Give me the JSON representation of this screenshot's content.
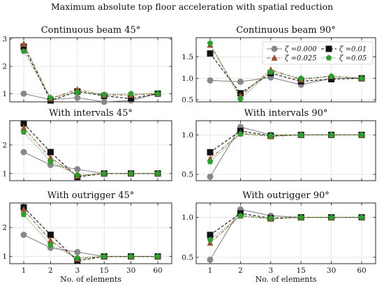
{
  "figure_title": "Maximum absolute top floor acceleration with spatial reduction",
  "colors": {
    "zeta_000": "#888888",
    "zeta_001": "#111111",
    "zeta_0025": "#a0522d",
    "zeta_005": "#2ca02c",
    "grid": "#dddddd"
  },
  "legend": {
    "placement": "upper-right of Continuous beam 90° panel",
    "entries": [
      {
        "label": "ζ =0.000",
        "marker": "circle",
        "line": "solid",
        "color_key": "zeta_000"
      },
      {
        "label": "ζ =0.01",
        "marker": "square",
        "line": "dashed",
        "color_key": "zeta_001"
      },
      {
        "label": "ζ =0.025",
        "marker": "triangle",
        "line": "dashdot",
        "color_key": "zeta_0025"
      },
      {
        "label": "ζ =0.05",
        "marker": "pentagon",
        "line": "dotted",
        "color_key": "zeta_005"
      }
    ]
  },
  "chart_data": [
    {
      "type": "line",
      "title": "Continuous beam 45°",
      "xlabel": "",
      "categories": [
        "1",
        "2",
        "3",
        "15",
        "30",
        "60"
      ],
      "x_tick_labels_visible": false,
      "ylim": [
        0.7,
        3.05
      ],
      "yticks": [
        1,
        2,
        3
      ],
      "ytick_labels": [
        "1",
        "2",
        "3"
      ],
      "grid": true,
      "series": [
        {
          "name": "ζ =0.000",
          "values": [
            1.0,
            0.78,
            0.85,
            0.7,
            0.75,
            1.0
          ]
        },
        {
          "name": "ζ =0.01",
          "values": [
            2.72,
            0.75,
            1.08,
            0.92,
            0.82,
            1.0
          ]
        },
        {
          "name": "ζ =0.025",
          "values": [
            2.82,
            0.82,
            1.15,
            0.95,
            0.95,
            1.0
          ]
        },
        {
          "name": "ζ =0.05",
          "values": [
            2.55,
            0.85,
            1.05,
            0.97,
            1.0,
            1.0
          ]
        }
      ]
    },
    {
      "type": "line",
      "title": "Continuous beam 90°",
      "xlabel": "",
      "categories": [
        "1",
        "2",
        "3",
        "15",
        "30",
        "60"
      ],
      "x_tick_labels_visible": false,
      "ylim": [
        0.45,
        1.95
      ],
      "yticks": [
        0.5,
        1.0,
        1.5
      ],
      "ytick_labels": [
        "0.5",
        "1.0",
        "1.5"
      ],
      "grid": true,
      "series": [
        {
          "name": "ζ =0.000",
          "values": [
            0.95,
            0.92,
            1.02,
            0.85,
            1.0,
            1.0
          ]
        },
        {
          "name": "ζ =0.01",
          "values": [
            1.58,
            0.65,
            1.12,
            0.93,
            0.98,
            1.0
          ]
        },
        {
          "name": "ζ =0.025",
          "values": [
            1.78,
            0.58,
            1.2,
            0.97,
            1.05,
            1.0
          ]
        },
        {
          "name": "ζ =0.05",
          "values": [
            1.82,
            0.52,
            1.15,
            1.0,
            1.05,
            1.0
          ]
        }
      ]
    },
    {
      "type": "line",
      "title": "With intervals 45°",
      "xlabel": "",
      "categories": [
        "1",
        "2",
        "3",
        "15",
        "30",
        "60"
      ],
      "x_tick_labels_visible": false,
      "ylim": [
        0.75,
        2.85
      ],
      "yticks": [
        1,
        2
      ],
      "ytick_labels": [
        "1",
        "2"
      ],
      "grid": true,
      "series": [
        {
          "name": "ζ =0.000",
          "values": [
            1.75,
            1.3,
            1.15,
            1.0,
            1.0,
            1.0
          ]
        },
        {
          "name": "ζ =0.01",
          "values": [
            2.75,
            1.75,
            0.88,
            1.0,
            1.0,
            1.0
          ]
        },
        {
          "name": "ζ =0.025",
          "values": [
            2.6,
            1.55,
            0.92,
            1.0,
            1.0,
            1.0
          ]
        },
        {
          "name": "ζ =0.05",
          "values": [
            2.45,
            1.42,
            0.95,
            1.0,
            1.0,
            1.0
          ]
        }
      ]
    },
    {
      "type": "line",
      "title": "With intervals 90°",
      "xlabel": "",
      "categories": [
        "1",
        "2",
        "3",
        "15",
        "30",
        "60"
      ],
      "x_tick_labels_visible": false,
      "ylim": [
        0.42,
        1.18
      ],
      "yticks": [
        0.5,
        1.0
      ],
      "ytick_labels": [
        "0.5",
        "1.0"
      ],
      "grid": true,
      "series": [
        {
          "name": "ζ =0.000",
          "values": [
            0.47,
            1.1,
            1.0,
            1.0,
            1.0,
            1.0
          ]
        },
        {
          "name": "ζ =0.01",
          "values": [
            0.78,
            1.05,
            0.99,
            1.0,
            1.0,
            1.0
          ]
        },
        {
          "name": "ζ =0.025",
          "values": [
            0.7,
            1.02,
            0.98,
            1.0,
            1.0,
            1.0
          ]
        },
        {
          "name": "ζ =0.05",
          "values": [
            0.66,
            1.01,
            0.99,
            1.0,
            1.0,
            1.0
          ]
        }
      ]
    },
    {
      "type": "line",
      "title": "With outrigger 45°",
      "xlabel": "No. of elements",
      "categories": [
        "1",
        "2",
        "3",
        "15",
        "30",
        "60"
      ],
      "x_tick_labels_visible": true,
      "ylim": [
        0.75,
        2.85
      ],
      "yticks": [
        1,
        2
      ],
      "ytick_labels": [
        "1",
        "2"
      ],
      "grid": true,
      "series": [
        {
          "name": "ζ =0.000",
          "values": [
            1.75,
            1.3,
            1.15,
            1.0,
            1.0,
            1.0
          ]
        },
        {
          "name": "ζ =0.01",
          "values": [
            2.7,
            1.75,
            0.85,
            1.0,
            1.0,
            1.0
          ]
        },
        {
          "name": "ζ =0.025",
          "values": [
            2.62,
            1.55,
            0.92,
            1.0,
            1.0,
            1.0
          ]
        },
        {
          "name": "ζ =0.05",
          "values": [
            2.45,
            1.4,
            0.95,
            1.0,
            1.0,
            1.0
          ]
        }
      ]
    },
    {
      "type": "line",
      "title": "With outrigger 90°",
      "xlabel": "No. of elements",
      "categories": [
        "1",
        "2",
        "3",
        "15",
        "30",
        "60"
      ],
      "x_tick_labels_visible": true,
      "ylim": [
        0.42,
        1.18
      ],
      "yticks": [
        0.5,
        1.0
      ],
      "ytick_labels": [
        "0.5",
        "1.0"
      ],
      "grid": true,
      "series": [
        {
          "name": "ζ =0.000",
          "values": [
            0.47,
            1.1,
            1.02,
            1.0,
            1.0,
            1.0
          ]
        },
        {
          "name": "ζ =0.01",
          "values": [
            0.78,
            1.05,
            0.99,
            1.0,
            1.0,
            1.0
          ]
        },
        {
          "name": "ζ =0.025",
          "values": [
            0.68,
            1.02,
            0.98,
            1.0,
            1.0,
            1.0
          ]
        },
        {
          "name": "ζ =0.05",
          "values": [
            0.72,
            1.02,
            0.99,
            1.0,
            1.0,
            1.0
          ]
        }
      ]
    }
  ]
}
